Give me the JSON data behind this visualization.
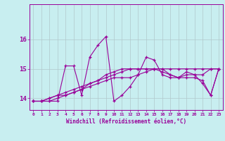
{
  "xlabel": "Windchill (Refroidissement éolien,°C)",
  "bg_color": "#c8eef0",
  "line_color": "#990099",
  "grid_color": "#b0c8cc",
  "xlim": [
    -0.5,
    23.5
  ],
  "ylim": [
    13.6,
    17.2
  ],
  "yticks": [
    14,
    15,
    16
  ],
  "xticks": [
    0,
    1,
    2,
    3,
    4,
    5,
    6,
    7,
    8,
    9,
    10,
    11,
    12,
    13,
    14,
    15,
    16,
    17,
    18,
    19,
    20,
    21,
    22,
    23
  ],
  "series1": [
    13.9,
    13.9,
    13.9,
    13.9,
    15.1,
    15.1,
    14.1,
    15.4,
    15.8,
    16.1,
    13.9,
    14.1,
    14.4,
    14.8,
    15.4,
    15.3,
    14.8,
    14.7,
    14.7,
    14.9,
    14.8,
    14.8,
    15.0,
    15.0
  ],
  "series2": [
    13.9,
    13.9,
    14.0,
    14.1,
    14.1,
    14.2,
    14.3,
    14.5,
    14.6,
    14.7,
    14.8,
    14.9,
    15.0,
    15.0,
    15.0,
    15.0,
    15.0,
    15.0,
    15.0,
    15.0,
    15.0,
    15.0,
    15.0,
    15.0
  ],
  "series3": [
    13.9,
    13.9,
    13.9,
    14.0,
    14.1,
    14.2,
    14.3,
    14.4,
    14.5,
    14.6,
    14.7,
    14.7,
    14.7,
    14.8,
    14.9,
    15.0,
    14.9,
    14.8,
    14.7,
    14.8,
    14.8,
    14.5,
    14.1,
    15.0
  ],
  "series4": [
    13.9,
    13.9,
    14.0,
    14.1,
    14.2,
    14.3,
    14.4,
    14.5,
    14.6,
    14.8,
    14.9,
    15.0,
    15.0,
    15.0,
    15.0,
    15.0,
    15.0,
    14.8,
    14.7,
    14.7,
    14.7,
    14.6,
    14.1,
    15.0
  ],
  "marker": "+"
}
